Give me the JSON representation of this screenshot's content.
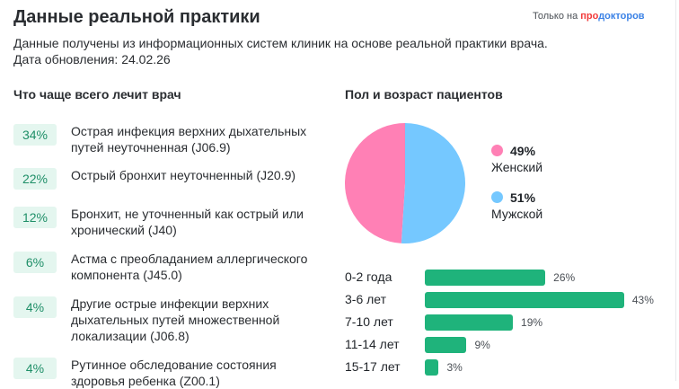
{
  "header": {
    "title": "Данные реальной практики",
    "brand_prefix": "Только на ",
    "brand_pro": "про",
    "brand_rest": "докторов"
  },
  "subtitle": {
    "line1": "Данные получены из информационных систем клиник на основе реальной практики врача.",
    "line2": "Дата обновления: 24.02.26"
  },
  "diagnoses": {
    "heading": "Что чаще всего лечит врач",
    "items": [
      {
        "pct": "34%",
        "text": "Острая инфекция верхних дыхательных путей неуточненная (J06.9)"
      },
      {
        "pct": "22%",
        "text": "Острый бронхит неуточненный (J20.9)"
      },
      {
        "pct": "12%",
        "text": "Бронхит, не уточненный как острый или хронический (J40)"
      },
      {
        "pct": "6%",
        "text": "Астма с преобладанием аллергического компонента (J45.0)"
      },
      {
        "pct": "4%",
        "text": "Другие острые инфекции верхних дыхательных путей множественной локализации (J06.8)"
      },
      {
        "pct": "4%",
        "text": "Рутинное обследование состояния здоровья ребенка (Z00.1)"
      }
    ]
  },
  "patients": {
    "heading": "Пол и возраст пациентов",
    "gender": [
      {
        "label": "Женский",
        "pct": "49%",
        "value": 49,
        "color": "#ff80b5"
      },
      {
        "label": "Мужской",
        "pct": "51%",
        "value": 51,
        "color": "#75c8ff"
      }
    ],
    "ages": [
      {
        "label": "0-2 года",
        "pct": "26%",
        "value": 26
      },
      {
        "label": "3-6 лет",
        "pct": "43%",
        "value": 43
      },
      {
        "label": "7-10 лет",
        "pct": "19%",
        "value": 19
      },
      {
        "label": "11-14 лет",
        "pct": "9%",
        "value": 9
      },
      {
        "label": "15-17 лет",
        "pct": "3%",
        "value": 3
      }
    ]
  }
}
